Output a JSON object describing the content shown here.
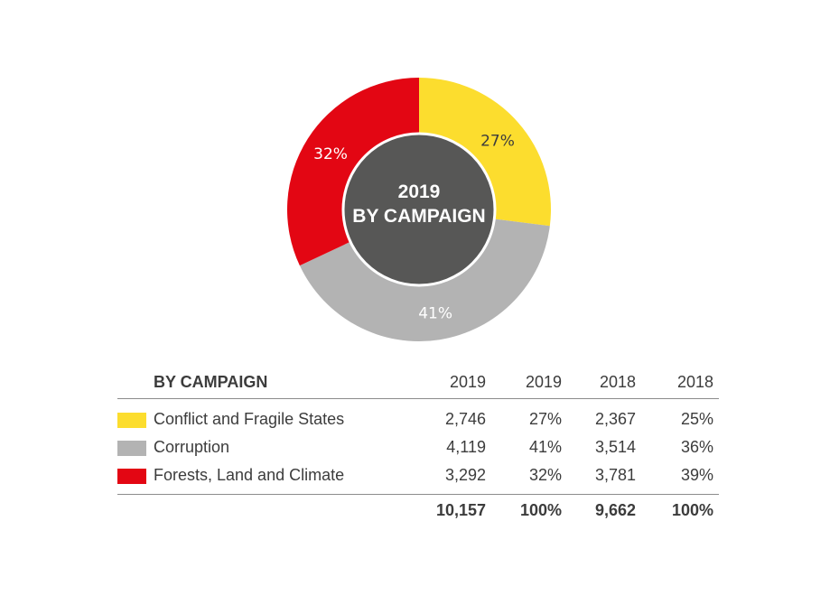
{
  "chart_data": {
    "type": "pie",
    "variant": "donut",
    "center_title": [
      "2019",
      "BY CAMPAIGN"
    ],
    "slices": [
      {
        "name": "Conflict and Fragile States",
        "value": 27,
        "label": "27%",
        "color": "#fcdd2e",
        "label_color": "#3c3c3c"
      },
      {
        "name": "Corruption",
        "value": 41,
        "label": "41%",
        "color": "#b3b3b3",
        "label_color": "#ffffff"
      },
      {
        "name": "Forests, Land and Climate",
        "value": 32,
        "label": "32%",
        "color": "#e30613",
        "label_color": "#ffffff"
      }
    ],
    "center_color": "#575756"
  },
  "table": {
    "title": "BY CAMPAIGN",
    "headers": [
      "2019",
      "2019",
      "2018",
      "2018"
    ],
    "rows": [
      {
        "label": "Conflict and Fragile States",
        "color": "#fcdd2e",
        "values": [
          "2,746",
          "27%",
          "2,367",
          "25%"
        ]
      },
      {
        "label": "Corruption",
        "color": "#b3b3b3",
        "values": [
          "4,119",
          "41%",
          "3,514",
          "36%"
        ]
      },
      {
        "label": "Forests, Land and Climate",
        "color": "#e30613",
        "values": [
          "3,292",
          "32%",
          "3,781",
          "39%"
        ]
      }
    ],
    "totals": [
      "10,157",
      "100%",
      "9,662",
      "100%"
    ]
  }
}
